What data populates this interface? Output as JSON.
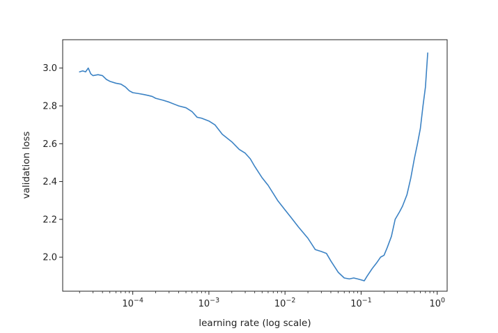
{
  "chart_data": {
    "type": "line",
    "title": "",
    "xlabel": "learning rate (log scale)",
    "ylabel": "validation loss",
    "x_scale": "log",
    "xlim": [
      1.2e-05,
      1.35
    ],
    "ylim": [
      1.82,
      3.15
    ],
    "grid": false,
    "color": "#3b82c4",
    "x_ticks": [
      {
        "value": 0.0001,
        "base": "10",
        "exp": "−4"
      },
      {
        "value": 0.001,
        "base": "10",
        "exp": "−3"
      },
      {
        "value": 0.01,
        "base": "10",
        "exp": "−2"
      },
      {
        "value": 0.1,
        "base": "10",
        "exp": "−1"
      },
      {
        "value": 1,
        "base": "10",
        "exp": "0"
      }
    ],
    "y_ticks": [
      "2.0",
      "2.2",
      "2.4",
      "2.6",
      "2.8",
      "3.0"
    ],
    "series": [
      {
        "points": [
          [
            2e-05,
            2.98
          ],
          [
            2.2e-05,
            2.985
          ],
          [
            2.4e-05,
            2.98
          ],
          [
            2.6e-05,
            3.0
          ],
          [
            2.8e-05,
            2.97
          ],
          [
            3e-05,
            2.96
          ],
          [
            3.5e-05,
            2.965
          ],
          [
            4e-05,
            2.96
          ],
          [
            4.5e-05,
            2.94
          ],
          [
            5e-05,
            2.93
          ],
          [
            6e-05,
            2.92
          ],
          [
            7e-05,
            2.915
          ],
          [
            8e-05,
            2.9
          ],
          [
            9e-05,
            2.88
          ],
          [
            0.0001,
            2.87
          ],
          [
            0.00012,
            2.865
          ],
          [
            0.00014,
            2.86
          ],
          [
            0.00016,
            2.855
          ],
          [
            0.00018,
            2.85
          ],
          [
            0.0002,
            2.84
          ],
          [
            0.00025,
            2.83
          ],
          [
            0.0003,
            2.82
          ],
          [
            0.0004,
            2.8
          ],
          [
            0.0005,
            2.79
          ],
          [
            0.0006,
            2.77
          ],
          [
            0.0007,
            2.74
          ],
          [
            0.0008,
            2.735
          ],
          [
            0.001,
            2.72
          ],
          [
            0.0012,
            2.7
          ],
          [
            0.0015,
            2.65
          ],
          [
            0.002,
            2.61
          ],
          [
            0.0025,
            2.57
          ],
          [
            0.003,
            2.55
          ],
          [
            0.0035,
            2.52
          ],
          [
            0.004,
            2.48
          ],
          [
            0.005,
            2.42
          ],
          [
            0.006,
            2.38
          ],
          [
            0.008,
            2.3
          ],
          [
            0.01,
            2.25
          ],
          [
            0.012,
            2.21
          ],
          [
            0.015,
            2.16
          ],
          [
            0.02,
            2.1
          ],
          [
            0.025,
            2.04
          ],
          [
            0.03,
            2.03
          ],
          [
            0.035,
            2.02
          ],
          [
            0.04,
            1.98
          ],
          [
            0.05,
            1.92
          ],
          [
            0.06,
            1.89
          ],
          [
            0.07,
            1.885
          ],
          [
            0.08,
            1.89
          ],
          [
            0.09,
            1.885
          ],
          [
            0.1,
            1.88
          ],
          [
            0.11,
            1.875
          ],
          [
            0.12,
            1.9
          ],
          [
            0.14,
            1.94
          ],
          [
            0.16,
            1.97
          ],
          [
            0.18,
            2.0
          ],
          [
            0.2,
            2.01
          ],
          [
            0.22,
            2.05
          ],
          [
            0.25,
            2.11
          ],
          [
            0.28,
            2.2
          ],
          [
            0.32,
            2.24
          ],
          [
            0.35,
            2.27
          ],
          [
            0.4,
            2.33
          ],
          [
            0.45,
            2.42
          ],
          [
            0.5,
            2.52
          ],
          [
            0.55,
            2.6
          ],
          [
            0.6,
            2.68
          ],
          [
            0.65,
            2.8
          ],
          [
            0.7,
            2.9
          ],
          [
            0.75,
            3.08
          ]
        ]
      }
    ]
  }
}
